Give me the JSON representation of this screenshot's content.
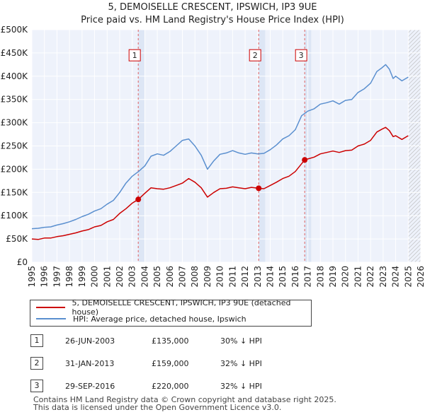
{
  "chart_data": {
    "type": "line",
    "title": "5, DEMOISELLE CRESCENT, IPSWICH, IP3 9UE",
    "subtitle": "Price paid vs. HM Land Registry's House Price Index (HPI)",
    "xlabel": "",
    "ylabel": "",
    "xlim": [
      1995,
      2026
    ],
    "ylim": [
      0,
      500000
    ],
    "x_ticks": [
      "1995",
      "1996",
      "1997",
      "1998",
      "1999",
      "2000",
      "2001",
      "2002",
      "2003",
      "2004",
      "2005",
      "2006",
      "2007",
      "2008",
      "2009",
      "2010",
      "2011",
      "2012",
      "2013",
      "2014",
      "2015",
      "2016",
      "2017",
      "2018",
      "2019",
      "2020",
      "2021",
      "2022",
      "2023",
      "2024",
      "2025",
      "2026"
    ],
    "y_ticks": [
      {
        "value": 0,
        "label": "£0"
      },
      {
        "value": 50000,
        "label": "£50K"
      },
      {
        "value": 100000,
        "label": "£100K"
      },
      {
        "value": 150000,
        "label": "£150K"
      },
      {
        "value": 200000,
        "label": "£200K"
      },
      {
        "value": 250000,
        "label": "£250K"
      },
      {
        "value": 300000,
        "label": "£300K"
      },
      {
        "value": 350000,
        "label": "£350K"
      },
      {
        "value": 400000,
        "label": "£400K"
      },
      {
        "value": 450000,
        "label": "£450K"
      },
      {
        "value": 500000,
        "label": "£500K"
      }
    ],
    "grid": true,
    "shaded_regions": [
      {
        "from": 2003.48,
        "to": 2004.0
      },
      {
        "from": 2013.08,
        "to": 2013.6
      },
      {
        "from": 2016.75,
        "to": 2017.27
      }
    ],
    "hatched_from": 2025.0,
    "series": [
      {
        "name": "5, DEMOISELLE CRESCENT, IPSWICH, IP3 9UE (detached house)",
        "color": "#cc0000",
        "x": [
          1995.0,
          1995.5,
          1996.0,
          1996.5,
          1997.0,
          1997.5,
          1998.0,
          1998.5,
          1999.0,
          1999.5,
          2000.0,
          2000.5,
          2001.0,
          2001.5,
          2002.0,
          2002.5,
          2003.0,
          2003.48,
          2004.0,
          2004.5,
          2005.0,
          2005.5,
          2006.0,
          2006.5,
          2007.0,
          2007.5,
          2008.0,
          2008.5,
          2009.0,
          2009.5,
          2010.0,
          2010.5,
          2011.0,
          2011.5,
          2012.0,
          2012.5,
          2013.08,
          2013.5,
          2014.0,
          2014.5,
          2015.0,
          2015.5,
          2016.0,
          2016.75,
          2017.0,
          2017.5,
          2018.0,
          2018.5,
          2019.0,
          2019.5,
          2020.0,
          2020.5,
          2021.0,
          2021.5,
          2022.0,
          2022.5,
          2022.9,
          2023.2,
          2023.5,
          2023.8,
          2024.0,
          2024.5,
          2025.0
        ],
        "y": [
          50000,
          49000,
          52000,
          52000,
          55000,
          57000,
          60000,
          63000,
          67000,
          70000,
          76000,
          79000,
          87000,
          92000,
          105000,
          115000,
          127000,
          135000,
          148000,
          160000,
          158000,
          157000,
          160000,
          165000,
          170000,
          180000,
          172000,
          160000,
          140000,
          150000,
          158000,
          159000,
          162000,
          160000,
          158000,
          161000,
          159000,
          158000,
          165000,
          172000,
          180000,
          185000,
          195000,
          220000,
          222000,
          226000,
          233000,
          236000,
          239000,
          236000,
          240000,
          241000,
          250000,
          254000,
          262000,
          280000,
          286000,
          290000,
          283000,
          270000,
          272000,
          264000,
          272000
        ]
      },
      {
        "name": "HPI: Average price, detached house, Ipswich",
        "color": "#5a8fcf",
        "x": [
          1995.0,
          1995.5,
          1996.0,
          1996.5,
          1997.0,
          1997.5,
          1998.0,
          1998.5,
          1999.0,
          1999.5,
          2000.0,
          2000.5,
          2001.0,
          2001.5,
          2002.0,
          2002.5,
          2003.0,
          2003.5,
          2004.0,
          2004.5,
          2005.0,
          2005.5,
          2006.0,
          2006.5,
          2007.0,
          2007.5,
          2008.0,
          2008.5,
          2009.0,
          2009.5,
          2010.0,
          2010.5,
          2011.0,
          2011.5,
          2012.0,
          2012.5,
          2013.0,
          2013.5,
          2014.0,
          2014.5,
          2015.0,
          2015.5,
          2016.0,
          2016.5,
          2017.0,
          2017.5,
          2018.0,
          2018.5,
          2019.0,
          2019.5,
          2020.0,
          2020.5,
          2021.0,
          2021.5,
          2022.0,
          2022.5,
          2022.9,
          2023.2,
          2023.5,
          2023.8,
          2024.0,
          2024.5,
          2025.0
        ],
        "y": [
          72000,
          73000,
          75000,
          76000,
          80000,
          83000,
          87000,
          92000,
          98000,
          103000,
          110000,
          115000,
          125000,
          133000,
          150000,
          170000,
          185000,
          195000,
          207000,
          228000,
          233000,
          230000,
          238000,
          250000,
          262000,
          265000,
          250000,
          230000,
          200000,
          218000,
          232000,
          235000,
          240000,
          235000,
          232000,
          235000,
          233000,
          234000,
          242000,
          252000,
          265000,
          272000,
          285000,
          315000,
          325000,
          330000,
          340000,
          343000,
          347000,
          340000,
          348000,
          350000,
          365000,
          373000,
          385000,
          410000,
          418000,
          425000,
          415000,
          395000,
          400000,
          390000,
          398000
        ]
      }
    ],
    "markers": [
      {
        "label": "1",
        "x": 2003.48,
        "y": 135000,
        "box_value": 445000
      },
      {
        "label": "2",
        "x": 2013.08,
        "y": 159000,
        "box_value": 445000
      },
      {
        "label": "3",
        "x": 2016.75,
        "y": 220000,
        "box_value": 445000
      }
    ]
  },
  "legend": [
    {
      "label": "5, DEMOISELLE CRESCENT, IPSWICH, IP3 9UE (detached house)",
      "color": "#cc0000"
    },
    {
      "label": "HPI: Average price, detached house, Ipswich",
      "color": "#5a8fcf"
    }
  ],
  "transactions": [
    {
      "num": "1",
      "date": "26-JUN-2003",
      "price": "£135,000",
      "pct": "30% ↓ HPI"
    },
    {
      "num": "2",
      "date": "31-JAN-2013",
      "price": "£159,000",
      "pct": "32% ↓ HPI"
    },
    {
      "num": "3",
      "date": "29-SEP-2016",
      "price": "£220,000",
      "pct": "32% ↓ HPI"
    }
  ],
  "footer": {
    "line1": "Contains HM Land Registry data © Crown copyright and database right 2025.",
    "line2": "This data is licensed under the Open Government Licence v3.0."
  }
}
